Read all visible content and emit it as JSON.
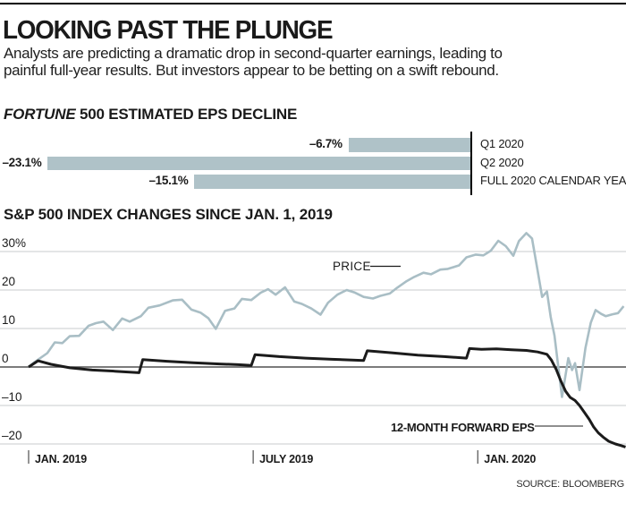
{
  "header": {
    "title": "LOOKING PAST THE PLUNGE",
    "subtitle_line1": "Analysts are predicting a dramatic drop in second-quarter earnings, leading to",
    "subtitle_line2": "painful full-year results. But investors appear to be betting on a swift rebound."
  },
  "source": "SOURCE: BLOOMBERG",
  "colors": {
    "accent_blue_gray": "#a9bec5",
    "bar_fill": "#afc2c8",
    "eps_black": "#1b1b1b",
    "gridline": "#c9cbcc",
    "zero_line": "#515151"
  },
  "chart_data": [
    {
      "type": "bar",
      "title_brand": "FORTUNE",
      "title_rest": " 500 ESTIMATED EPS DECLINE",
      "orientation": "horizontal-bars-extending-left-from-zero",
      "categories": [
        "Q1 2020",
        "Q2 2020",
        "FULL 2020 CALENDAR YEAR"
      ],
      "values": [
        -6.7,
        -23.1,
        -15.1
      ],
      "value_labels": [
        "–6.7%",
        "–23.1%",
        "–15.1%"
      ],
      "xlim": [
        -25,
        0
      ]
    },
    {
      "type": "line",
      "title": "S&P 500 INDEX CHANGES SINCE JAN. 1, 2019",
      "x_unit": "months since Jan. 1, 2019",
      "ylabel": "% change",
      "ylim": [
        -23,
        37
      ],
      "grid": true,
      "y_ticks": [
        {
          "label": "30%",
          "v": 30
        },
        {
          "label": "20",
          "v": 20
        },
        {
          "label": "10",
          "v": 10
        },
        {
          "label": "0",
          "v": 0
        },
        {
          "label": "–10",
          "v": -10
        },
        {
          "label": "–20",
          "v": -20
        }
      ],
      "x_ticks": [
        {
          "label": "JAN. 2019",
          "t": 0
        },
        {
          "label": "JULY 2019",
          "t": 6
        },
        {
          "label": "JAN. 2020",
          "t": 12
        }
      ],
      "series": [
        {
          "name": "PRICE",
          "color": "#a9bec5",
          "width": 2.6,
          "points": [
            [
              0,
              0
            ],
            [
              0.15,
              1.2
            ],
            [
              0.5,
              3.6
            ],
            [
              0.7,
              6.4
            ],
            [
              0.9,
              6.2
            ],
            [
              1.1,
              8.0
            ],
            [
              1.35,
              8.1
            ],
            [
              1.6,
              10.7
            ],
            [
              1.8,
              11.4
            ],
            [
              2.0,
              11.8
            ],
            [
              2.25,
              9.6
            ],
            [
              2.5,
              12.6
            ],
            [
              2.7,
              11.8
            ],
            [
              3.0,
              13.2
            ],
            [
              3.2,
              15.4
            ],
            [
              3.5,
              16.0
            ],
            [
              3.85,
              17.3
            ],
            [
              4.1,
              17.5
            ],
            [
              4.35,
              14.9
            ],
            [
              4.6,
              14.1
            ],
            [
              4.8,
              12.7
            ],
            [
              5.0,
              9.9
            ],
            [
              5.25,
              14.6
            ],
            [
              5.5,
              15.2
            ],
            [
              5.7,
              17.7
            ],
            [
              5.95,
              17.4
            ],
            [
              6.2,
              19.3
            ],
            [
              6.4,
              20.2
            ],
            [
              6.6,
              18.8
            ],
            [
              6.85,
              20.7
            ],
            [
              7.1,
              17.0
            ],
            [
              7.3,
              16.4
            ],
            [
              7.55,
              15.2
            ],
            [
              7.8,
              13.6
            ],
            [
              8.0,
              16.7
            ],
            [
              8.25,
              18.8
            ],
            [
              8.5,
              20.0
            ],
            [
              8.7,
              19.4
            ],
            [
              8.95,
              18.2
            ],
            [
              9.2,
              17.8
            ],
            [
              9.4,
              18.5
            ],
            [
              9.65,
              19.1
            ],
            [
              9.85,
              20.6
            ],
            [
              10.1,
              22.3
            ],
            [
              10.3,
              23.4
            ],
            [
              10.55,
              24.5
            ],
            [
              10.75,
              24.1
            ],
            [
              11.0,
              25.3
            ],
            [
              11.2,
              25.5
            ],
            [
              11.5,
              26.4
            ],
            [
              11.7,
              28.5
            ],
            [
              11.95,
              29.2
            ],
            [
              12.15,
              29.0
            ],
            [
              12.35,
              30.2
            ],
            [
              12.55,
              32.8
            ],
            [
              12.75,
              31.4
            ],
            [
              12.95,
              28.9
            ],
            [
              13.1,
              32.7
            ],
            [
              13.3,
              34.8
            ],
            [
              13.45,
              33.4
            ],
            [
              13.6,
              25.0
            ],
            [
              13.72,
              18.2
            ],
            [
              13.85,
              19.6
            ],
            [
              13.95,
              13.0
            ],
            [
              14.05,
              8.2
            ],
            [
              14.25,
              -7.8
            ],
            [
              14.42,
              2.3
            ],
            [
              14.52,
              -0.8
            ],
            [
              14.6,
              1.0
            ],
            [
              14.72,
              -6.0
            ],
            [
              14.88,
              5.0
            ],
            [
              15.02,
              11.5
            ],
            [
              15.15,
              14.8
            ],
            [
              15.3,
              13.8
            ],
            [
              15.42,
              13.2
            ],
            [
              15.6,
              13.7
            ],
            [
              15.75,
              14.0
            ],
            [
              15.9,
              15.8
            ]
          ]
        },
        {
          "name": "12-MONTH FORWARD EPS",
          "color": "#1b1b1b",
          "width": 3,
          "points": [
            [
              0,
              0
            ],
            [
              0.25,
              1.6
            ],
            [
              0.6,
              0.7
            ],
            [
              1.1,
              -0.2
            ],
            [
              1.7,
              -0.8
            ],
            [
              2.3,
              -1.1
            ],
            [
              2.95,
              -1.5
            ],
            [
              3.05,
              1.9
            ],
            [
              3.7,
              1.5
            ],
            [
              4.4,
              1.1
            ],
            [
              5.1,
              0.8
            ],
            [
              5.6,
              0.6
            ],
            [
              5.95,
              0.4
            ],
            [
              6.05,
              3.2
            ],
            [
              6.7,
              2.7
            ],
            [
              7.4,
              2.3
            ],
            [
              8.1,
              2.0
            ],
            [
              8.95,
              1.7
            ],
            [
              9.05,
              4.2
            ],
            [
              9.7,
              3.7
            ],
            [
              10.4,
              3.1
            ],
            [
              11.1,
              2.7
            ],
            [
              11.7,
              2.3
            ],
            [
              11.78,
              4.8
            ],
            [
              12.1,
              4.6
            ],
            [
              12.5,
              4.7
            ],
            [
              12.9,
              4.5
            ],
            [
              13.3,
              4.3
            ],
            [
              13.6,
              3.9
            ],
            [
              13.85,
              3.3
            ],
            [
              13.97,
              1.8
            ],
            [
              14.1,
              -0.7
            ],
            [
              14.22,
              -3.6
            ],
            [
              14.35,
              -6.3
            ],
            [
              14.47,
              -7.9
            ],
            [
              14.6,
              -8.7
            ],
            [
              14.72,
              -10.0
            ],
            [
              14.85,
              -11.8
            ],
            [
              14.98,
              -13.6
            ],
            [
              15.1,
              -15.6
            ],
            [
              15.22,
              -17.1
            ],
            [
              15.35,
              -18.2
            ],
            [
              15.5,
              -19.3
            ],
            [
              15.68,
              -20.0
            ],
            [
              15.82,
              -20.4
            ],
            [
              15.95,
              -20.8
            ]
          ]
        }
      ],
      "annotations": [
        {
          "text": "PRICE",
          "refers_to": "PRICE"
        },
        {
          "text": "12-MONTH FORWARD EPS",
          "refers_to": "12-MONTH FORWARD EPS"
        }
      ]
    }
  ]
}
